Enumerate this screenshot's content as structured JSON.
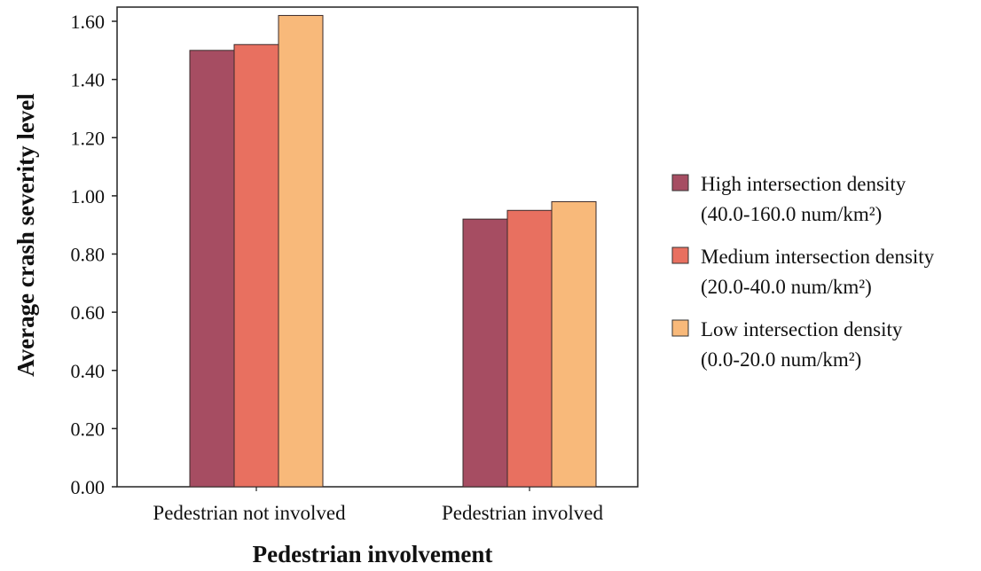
{
  "chart_data": {
    "type": "bar",
    "title": "",
    "xlabel": "Pedestrian involvement",
    "ylabel": "Average crash severity level",
    "categories": [
      "Pedestrian not involved",
      "Pedestrian involved"
    ],
    "ylim": [
      0,
      1.6
    ],
    "yticks": [
      "0.00",
      "0.20",
      "0.40",
      "0.60",
      "0.80",
      "1.00",
      "1.20",
      "1.40",
      "1.60"
    ],
    "grid": false,
    "legend_position": "right",
    "series": [
      {
        "name": "High intersection density",
        "subtitle": "(40.0-160.0 num/km²)",
        "color": "#a64d62",
        "values": [
          1.5,
          0.92
        ]
      },
      {
        "name": "Medium intersection density",
        "subtitle": "(20.0-40.0 num/km²)",
        "color": "#e87060",
        "values": [
          1.52,
          0.95
        ]
      },
      {
        "name": "Low intersection density",
        "subtitle": "(0.0-20.0 num/km²)",
        "color": "#f8b97a",
        "values": [
          1.62,
          0.98
        ]
      }
    ]
  }
}
